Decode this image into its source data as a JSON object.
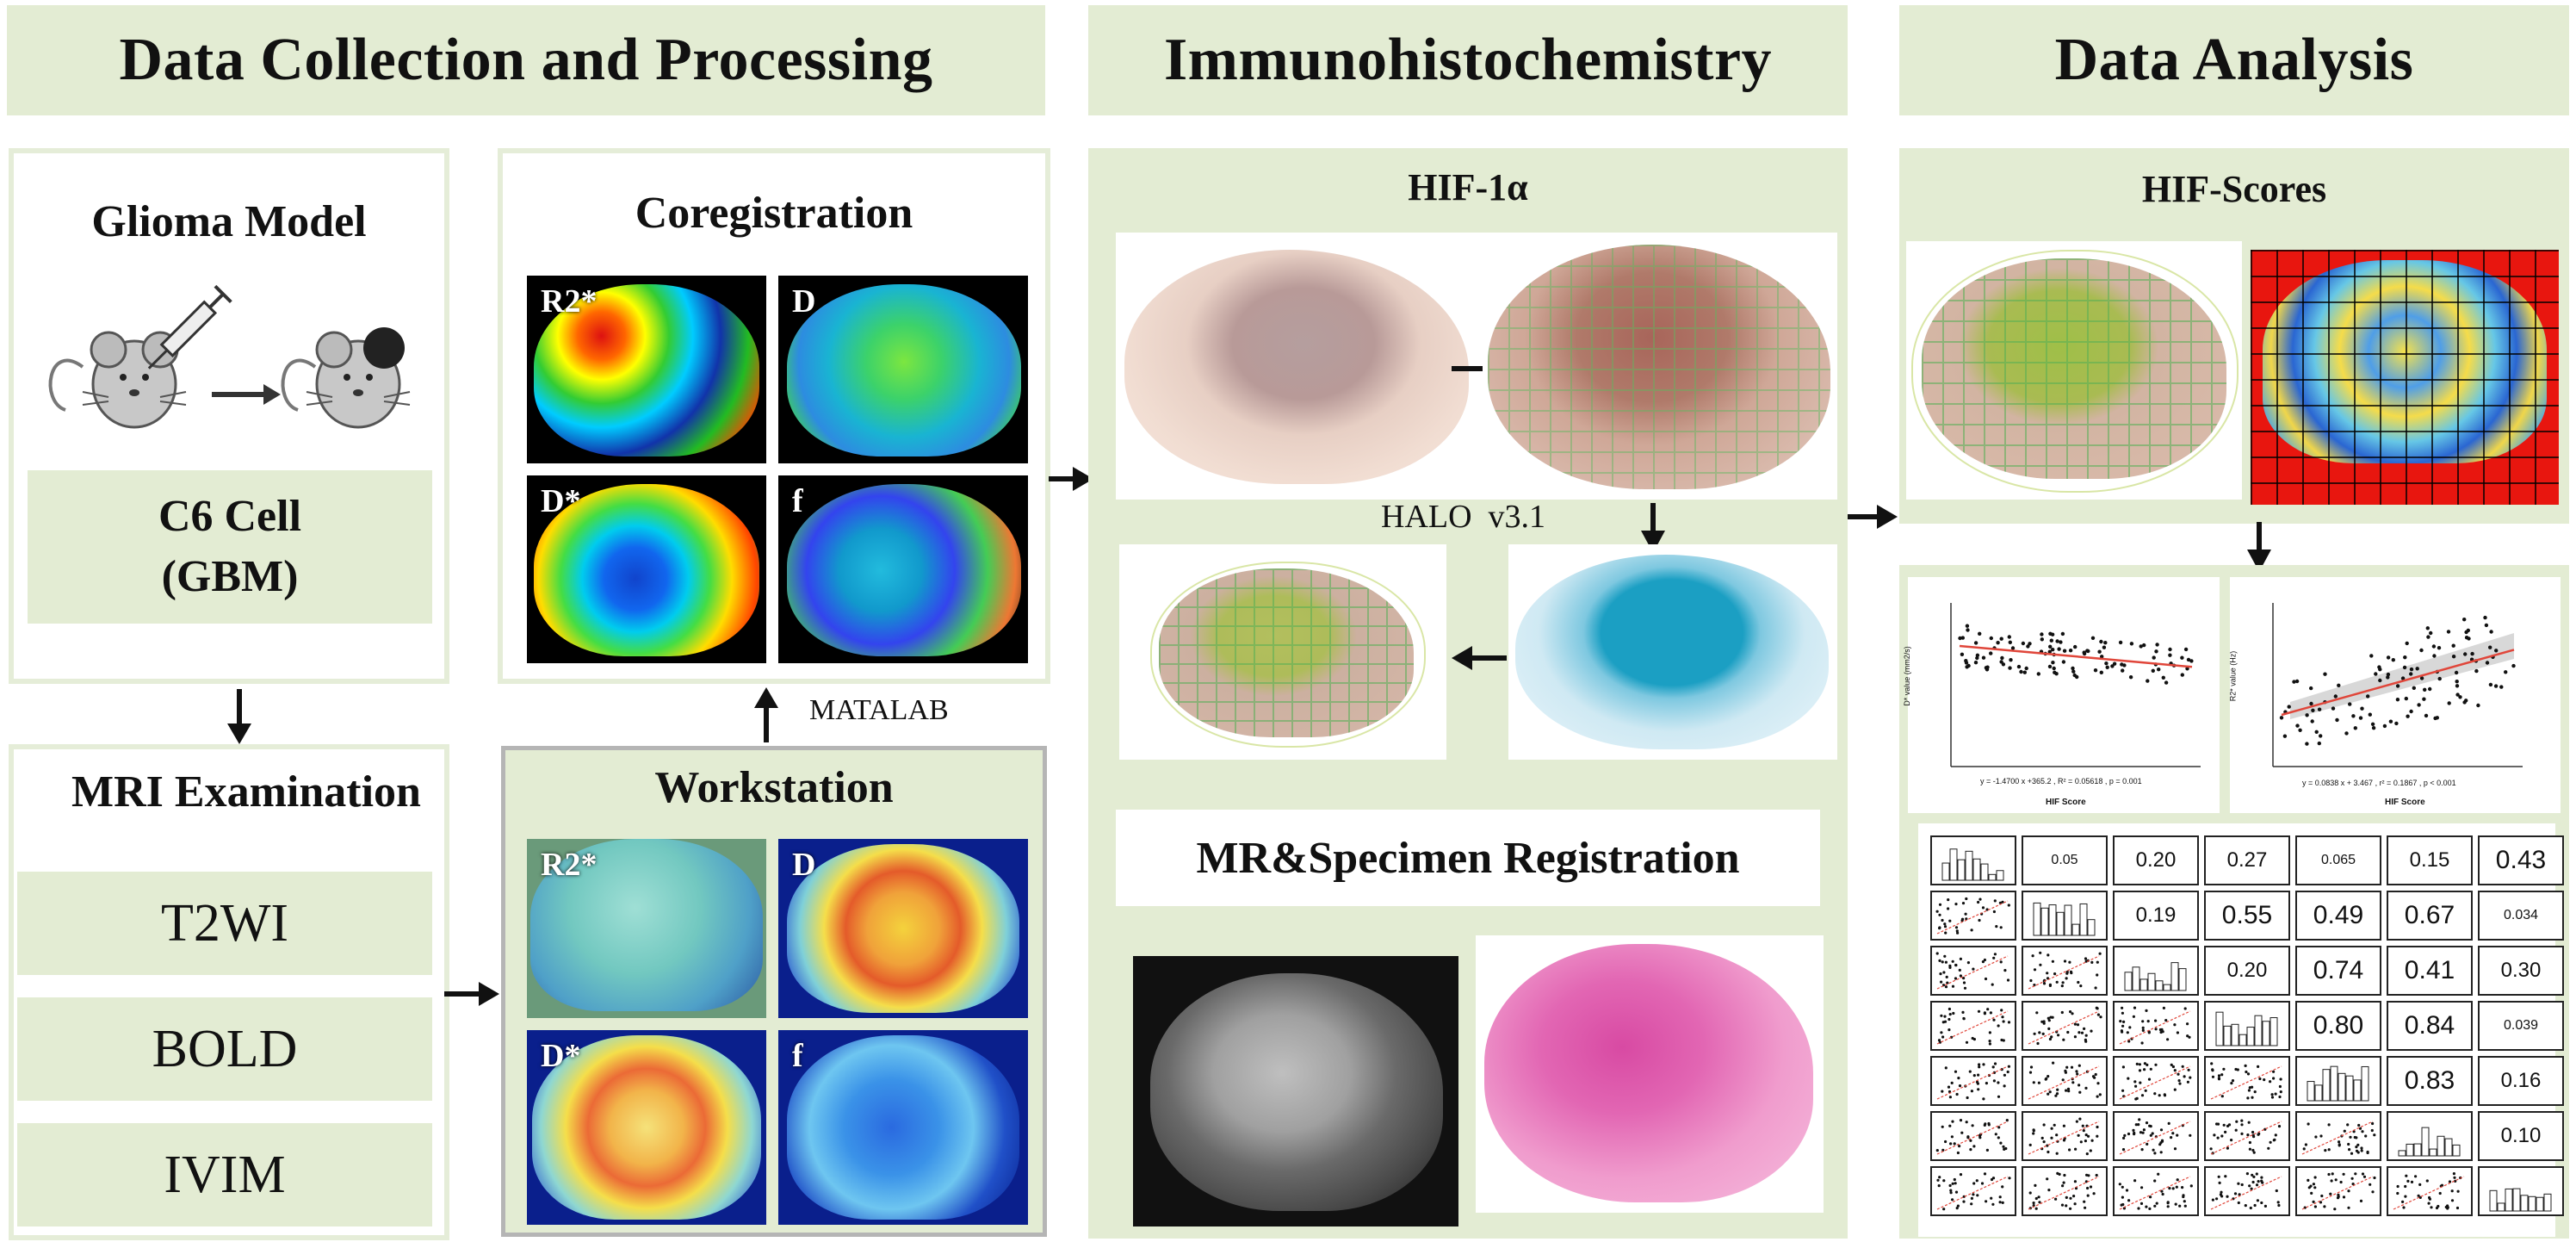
{
  "sections": {
    "left_title": "Data Collection and Processing",
    "middle_title": "Immunohistochemistry",
    "right_title": "Data Analysis"
  },
  "glioma": {
    "title": "Glioma Model",
    "cell_line": "C6 Cell",
    "cell_type": "(GBM)"
  },
  "mri": {
    "title": "MRI Examination",
    "sequences": [
      "T2WI",
      "BOLD",
      "IVIM"
    ]
  },
  "coreg": {
    "title": "Coregistration",
    "maps": [
      "R2*",
      "D",
      "D*",
      "f"
    ]
  },
  "workstation": {
    "title": "Workstation",
    "maps": [
      "R2*",
      "D",
      "D*",
      "f"
    ]
  },
  "matlab_label": "MATALAB",
  "ihc": {
    "title": "HIF-1α",
    "software": "HALO  v3.1",
    "registration": "MR&Specimen Registration"
  },
  "analysis": {
    "title": "HIF-Scores",
    "plot1": {
      "ylabel": "D* value (mm2/s)",
      "xlabel": "HIF Score",
      "stat": "y = -1.4700 x +365.2 , R² = 0.05618 , p = 0.001"
    },
    "plot2": {
      "ylabel": "R2* value (Hz)",
      "xlabel": "HIF Score",
      "stat": "y = 0.0838 x + 3.467 , r² = 0.1867 , p < 0.001"
    },
    "matrix_values": [
      [
        "0.05",
        "0.20",
        "0.27",
        "0.065",
        "0.15",
        "0.43"
      ],
      [
        "0.19",
        "0.55",
        "0.49",
        "0.67",
        "0.034"
      ],
      [
        "0.20",
        "0.74",
        "0.41",
        "0.30"
      ],
      [
        "0.80",
        "0.84",
        "0.039"
      ],
      [
        "0.83",
        "0.16"
      ],
      [
        "0.10"
      ]
    ]
  },
  "colors": {
    "header_bg": "#e3ecd3",
    "panel_border": "#e5edd8",
    "arrow": "#111111",
    "he_pink": "#e66fb8",
    "halo_blue": "#1b9fc3"
  }
}
